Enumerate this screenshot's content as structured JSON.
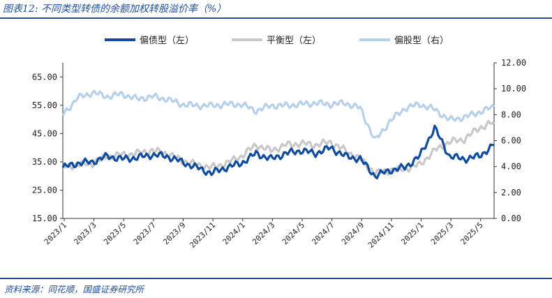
{
  "figure": {
    "title": "图表12:  不同类型转债的余额加权转股溢价率（%）",
    "source": "资料来源：同花顺，国盛证券研究所"
  },
  "colors": {
    "accent": "#1f4e9a",
    "bond_biased": "#0f4c9f",
    "balanced": "#c8c8c8",
    "equity_biased": "#b7d0ea"
  },
  "chart_data": {
    "type": "line",
    "x_tick_labels": [
      "2023/1",
      "2023/3",
      "2023/5",
      "2023/7",
      "2023/9",
      "2023/11",
      "2024/1",
      "2024/3",
      "2024/5",
      "2024/7",
      "2024/9",
      "2024/11",
      "2025/1",
      "2025/3",
      "2025/5"
    ],
    "y_left": {
      "ticks": [
        "15.00",
        "25.00",
        "35.00",
        "45.00",
        "55.00",
        "65.00"
      ],
      "range": [
        15,
        70
      ]
    },
    "y_right": {
      "ticks": [
        "0.00",
        "2.00",
        "4.00",
        "6.00",
        "8.00",
        "10.00",
        "12.00"
      ],
      "range": [
        0,
        12
      ]
    },
    "legend_position": "top-center",
    "grid": false,
    "series": [
      {
        "name": "偏债型（左）",
        "axis": "left",
        "x": [
          "2023-01",
          "2023-02",
          "2023-03",
          "2023-04",
          "2023-05",
          "2023-06",
          "2023-07",
          "2023-08",
          "2023-09",
          "2023-10",
          "2023-11",
          "2023-12",
          "2024-01",
          "2024-02",
          "2024-03",
          "2024-04",
          "2024-05",
          "2024-06",
          "2024-07",
          "2024-08",
          "2024-09",
          "2024-10",
          "2024-11",
          "2024-12",
          "2025-01",
          "2025-02",
          "2025-03",
          "2025-04",
          "2025-05",
          "2025-06"
        ],
        "y": [
          33,
          34.5,
          35,
          37,
          36,
          36.5,
          37.5,
          37,
          35,
          33,
          31,
          33,
          34.5,
          38,
          36,
          38,
          39,
          38,
          40,
          37,
          36,
          30,
          32,
          33,
          37,
          47,
          37,
          36,
          37,
          41
        ]
      },
      {
        "name": "平衡型（左）",
        "axis": "left",
        "x": [
          "2023-01",
          "2023-02",
          "2023-03",
          "2023-04",
          "2023-05",
          "2023-06",
          "2023-07",
          "2023-08",
          "2023-09",
          "2023-10",
          "2023-11",
          "2023-12",
          "2024-01",
          "2024-02",
          "2024-03",
          "2024-04",
          "2024-05",
          "2024-06",
          "2024-07",
          "2024-08",
          "2024-09",
          "2024-10",
          "2024-11",
          "2024-12",
          "2025-01",
          "2025-02",
          "2025-03",
          "2025-04",
          "2025-05",
          "2025-06"
        ],
        "y": [
          33,
          34,
          34.5,
          37,
          37.5,
          38,
          39,
          38,
          35.5,
          34,
          33,
          34.5,
          37,
          41,
          39,
          41,
          41.5,
          41,
          42,
          39,
          36,
          31,
          32,
          32.5,
          34,
          39,
          42,
          43,
          47,
          49
        ]
      },
      {
        "name": "偏股型（右）",
        "axis": "right",
        "x": [
          "2023-01",
          "2023-02",
          "2023-03",
          "2023-04",
          "2023-05",
          "2023-06",
          "2023-07",
          "2023-08",
          "2023-09",
          "2023-10",
          "2023-11",
          "2023-12",
          "2024-01",
          "2024-02",
          "2024-03",
          "2024-04",
          "2024-05",
          "2024-06",
          "2024-07",
          "2024-08",
          "2024-09",
          "2024-10",
          "2024-11",
          "2024-12",
          "2025-01",
          "2025-02",
          "2025-03",
          "2025-04",
          "2025-05",
          "2025-06"
        ],
        "y": [
          8.0,
          9.3,
          9.7,
          9.4,
          9.6,
          9.2,
          9.4,
          9.2,
          8.8,
          8.7,
          8.7,
          8.8,
          8.8,
          8.3,
          8.7,
          8.7,
          8.8,
          8.9,
          8.8,
          8.9,
          8.5,
          6.0,
          7.5,
          8.5,
          8.8,
          8.4,
          7.6,
          7.8,
          8.2,
          8.6
        ]
      }
    ]
  }
}
